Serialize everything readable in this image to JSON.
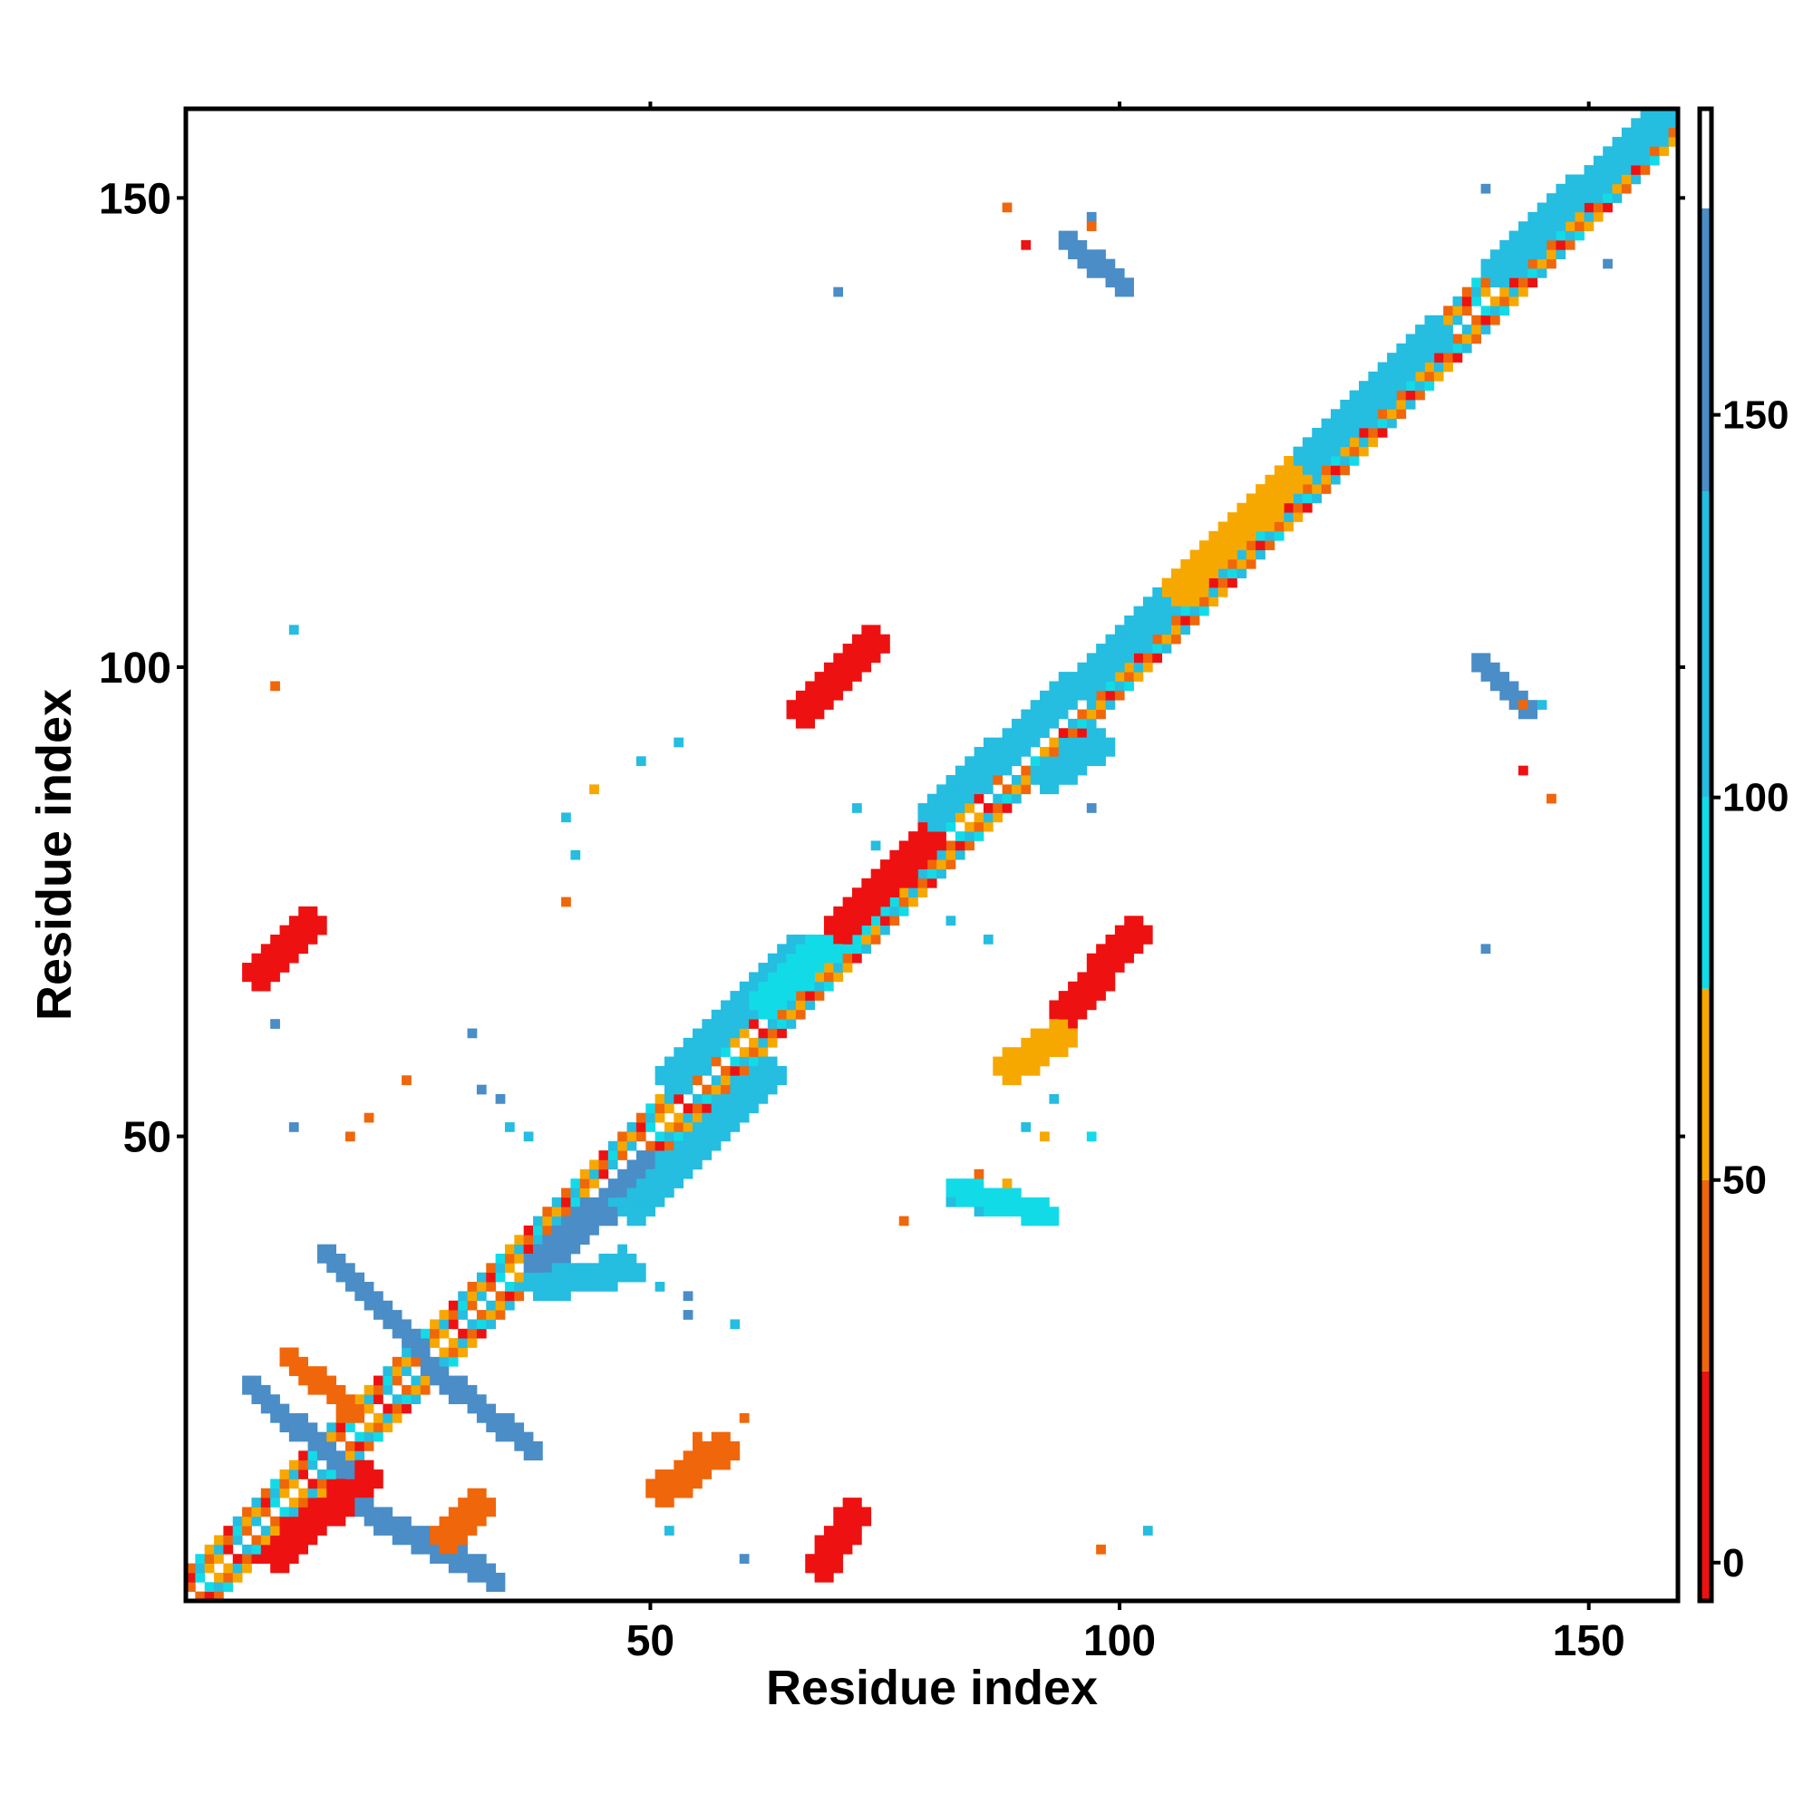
{
  "chart_data": {
    "type": "heatmap",
    "title": "",
    "xlabel": "Residue index",
    "ylabel": "Residue index",
    "xlim": [
      0.5,
      159.5
    ],
    "ylim": [
      0.5,
      159.5
    ],
    "xticks": [
      50,
      100,
      150
    ],
    "yticks": [
      50,
      100,
      150
    ],
    "grid": false,
    "colorbar": {
      "range": [
        -5,
        190
      ],
      "ticks": [
        0,
        50,
        100,
        150
      ],
      "bands": [
        {
          "from": -5,
          "to": 25,
          "color": "#ee1111"
        },
        {
          "from": 25,
          "to": 50,
          "color": "#f0660a"
        },
        {
          "from": 50,
          "to": 75,
          "color": "#f7a800"
        },
        {
          "from": 75,
          "to": 100,
          "color": "#12dbe8"
        },
        {
          "from": 100,
          "to": 140,
          "color": "#25bde0"
        },
        {
          "from": 140,
          "to": 177,
          "color": "#4a8dc7"
        },
        {
          "from": 177,
          "to": 190,
          "color": "#ffffff"
        }
      ]
    },
    "segments": [
      {
        "from": [
          1,
          1
        ],
        "to": [
          159,
          159
        ],
        "width": 6,
        "pattern": "diagonal"
      },
      {
        "from": [
          10,
          5
        ],
        "to": [
          20,
          14
        ],
        "value": 10
      },
      {
        "from": [
          38,
          36
        ],
        "to": [
          50,
          47
        ],
        "value": 160
      },
      {
        "from": [
          48,
          42
        ],
        "to": [
          63,
          57
        ],
        "value": 120
      },
      {
        "from": [
          52,
          56
        ],
        "to": [
          66,
          70
        ],
        "value": 115
      },
      {
        "from": [
          62,
          64
        ],
        "to": [
          75,
          76
        ],
        "value": 90
      },
      {
        "from": [
          70,
          72
        ],
        "to": [
          80,
          82
        ],
        "value": 20
      },
      {
        "from": [
          80,
          84
        ],
        "to": [
          95,
          98
        ],
        "value": 115
      },
      {
        "from": [
          96,
          98
        ],
        "to": [
          108,
          110
        ],
        "value": 100
      },
      {
        "from": [
          106,
          108
        ],
        "to": [
          120,
          122
        ],
        "value": 60
      },
      {
        "from": [
          120,
          122
        ],
        "to": [
          134,
          136
        ],
        "value": 115
      },
      {
        "from": [
          140,
          142
        ],
        "to": [
          158,
          159
        ],
        "value": 120
      },
      {
        "from": [
          8,
          23
        ],
        "to": [
          17,
          15
        ],
        "value": 150
      },
      {
        "from": [
          16,
          37
        ],
        "to": [
          25,
          28
        ],
        "value": 155
      },
      {
        "from": [
          20,
          10
        ],
        "to": [
          33,
          3
        ],
        "value": 160
      },
      {
        "from": [
          27,
          25
        ],
        "to": [
          37,
          17
        ],
        "value": 160
      },
      {
        "from": [
          12,
          26
        ],
        "to": [
          18,
          21
        ],
        "value": 25
      },
      {
        "from": [
          28,
          7
        ],
        "to": [
          32,
          11
        ],
        "value": 40
      },
      {
        "from": [
          68,
          4
        ],
        "to": [
          72,
          10
        ],
        "value": 15
      },
      {
        "from": [
          66,
          95
        ],
        "to": [
          74,
          103
        ],
        "value": 15
      },
      {
        "from": [
          94,
          63
        ],
        "to": [
          102,
          72
        ],
        "value": 15
      },
      {
        "from": [
          8,
          67
        ],
        "to": [
          14,
          73
        ],
        "value": 15
      },
      {
        "from": [
          95,
          145
        ],
        "to": [
          100,
          141
        ],
        "value": 160
      },
      {
        "from": [
          139,
          100
        ],
        "to": [
          143,
          96
        ],
        "value": 160
      },
      {
        "from": [
          51,
          12
        ],
        "to": [
          58,
          17
        ],
        "value": 40
      },
      {
        "from": [
          88,
          57
        ],
        "to": [
          94,
          61
        ],
        "value": 70
      },
      {
        "from": [
          38,
          34
        ],
        "to": [
          48,
          36
        ],
        "value": 110
      },
      {
        "from": [
          83,
          44
        ],
        "to": [
          92,
          42
        ],
        "value": 95
      },
      {
        "from": [
          92,
          88
        ],
        "to": [
          98,
          92
        ],
        "value": 130
      }
    ],
    "points": [
      [
        12,
        104,
        100
      ],
      [
        10,
        98,
        35
      ],
      [
        41,
        84,
        100
      ],
      [
        42,
        80,
        100
      ],
      [
        44,
        87,
        55
      ],
      [
        49,
        90,
        100
      ],
      [
        53,
        92,
        100
      ],
      [
        70,
        140,
        160
      ],
      [
        72,
        85,
        130
      ],
      [
        74,
        81,
        100
      ],
      [
        41,
        75,
        40
      ],
      [
        88,
        149,
        40
      ],
      [
        90,
        145,
        15
      ],
      [
        97,
        148,
        160
      ],
      [
        97,
        147,
        40
      ],
      [
        82,
        73,
        100
      ],
      [
        86,
        71,
        100
      ],
      [
        139,
        151,
        160
      ],
      [
        152,
        143,
        160
      ],
      [
        139,
        70,
        160
      ],
      [
        143,
        96,
        40
      ],
      [
        145,
        96,
        100
      ],
      [
        143,
        89,
        15
      ],
      [
        146,
        86,
        40
      ],
      [
        97,
        85,
        160
      ],
      [
        93,
        54,
        100
      ],
      [
        97,
        50,
        90
      ],
      [
        24,
        56,
        35
      ],
      [
        20,
        52,
        25
      ],
      [
        18,
        50,
        30
      ],
      [
        10,
        62,
        160
      ],
      [
        12,
        51,
        160
      ],
      [
        31,
        61,
        160
      ],
      [
        32,
        55,
        160
      ],
      [
        34,
        54,
        160
      ],
      [
        35,
        51,
        100
      ],
      [
        37,
        50,
        100
      ],
      [
        47,
        38,
        100
      ],
      [
        49,
        36,
        100
      ],
      [
        51,
        34,
        100
      ],
      [
        54,
        33,
        160
      ],
      [
        54,
        31,
        160
      ],
      [
        59,
        30,
        130
      ],
      [
        52,
        12,
        40
      ],
      [
        50,
        13,
        40
      ],
      [
        55,
        18,
        40
      ],
      [
        60,
        20,
        40
      ],
      [
        52,
        8,
        130
      ],
      [
        60,
        5,
        160
      ],
      [
        98,
        6,
        40
      ],
      [
        103,
        8,
        100
      ],
      [
        77,
        41,
        40
      ],
      [
        82,
        43,
        100
      ],
      [
        85,
        42,
        100
      ],
      [
        85,
        46,
        40
      ],
      [
        88,
        45,
        55
      ],
      [
        90,
        51,
        100
      ],
      [
        92,
        50,
        55
      ],
      [
        46,
        43,
        100
      ]
    ]
  }
}
